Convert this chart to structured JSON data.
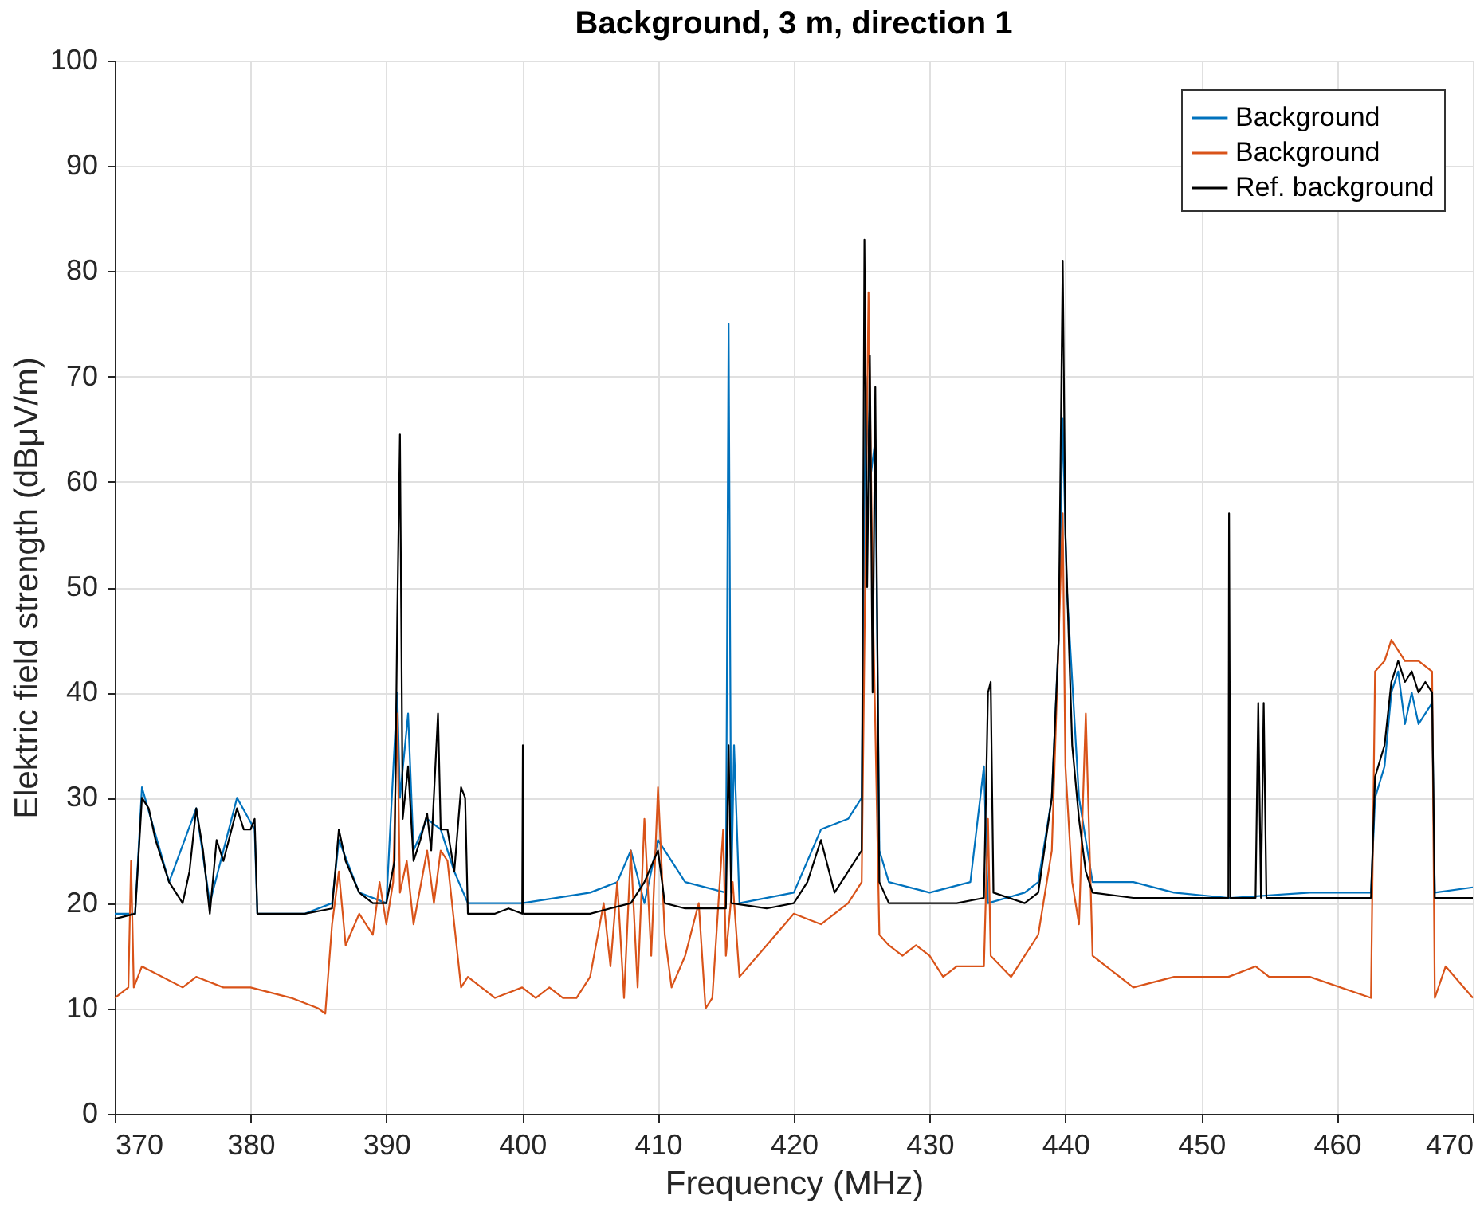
{
  "chart_data": {
    "type": "line",
    "title": "Background, 3 m, direction 1",
    "xlabel": "Frequency (MHz)",
    "ylabel": "Elektric field strength (dBμV/m)",
    "xlim": [
      370,
      470
    ],
    "xticks": [
      370,
      380,
      390,
      400,
      410,
      420,
      430,
      440,
      450,
      460,
      470
    ],
    "ylim": [
      0,
      100
    ],
    "yticks": [
      0,
      10,
      20,
      30,
      40,
      50,
      60,
      70,
      80,
      90,
      100
    ],
    "grid": true,
    "legend": "top right",
    "line_style": "solid",
    "marker": "none",
    "series": [
      {
        "name": "Background",
        "color": "#0072bd",
        "x": [
          370,
          371.5,
          372,
          374,
          376,
          377,
          379,
          380.3,
          380.5,
          384,
          386,
          386.5,
          388,
          390,
          390.8,
          391,
          391.6,
          392,
          393,
          394,
          395,
          396,
          400,
          405,
          407,
          408,
          409,
          410,
          412,
          415,
          415.2,
          415.4,
          415.6,
          416,
          420,
          422,
          424,
          425,
          425.3,
          425.6,
          426,
          426.3,
          427,
          430,
          433,
          434,
          434.3,
          437,
          438,
          439,
          439.5,
          439.8,
          440.1,
          441,
          442,
          445,
          448,
          452,
          452.15,
          458,
          462.5,
          462.8,
          463.5,
          464,
          464.5,
          465,
          465.5,
          466,
          467,
          467.2,
          470
        ],
        "values": [
          19,
          19,
          31,
          22,
          29,
          20,
          30,
          27,
          19,
          19,
          20,
          26,
          21,
          20,
          40,
          30,
          38,
          25,
          28,
          27,
          23,
          20,
          20,
          21,
          22,
          25,
          20,
          26,
          22,
          21,
          75,
          21,
          35,
          20,
          21,
          27,
          28,
          30,
          70,
          60,
          64,
          25,
          22,
          21,
          22,
          33,
          20,
          21,
          22,
          30,
          45,
          66,
          50,
          30,
          22,
          22,
          21,
          20.5,
          20.5,
          21,
          21,
          30,
          33,
          40,
          42,
          37,
          40,
          37,
          39,
          21,
          21.5
        ]
      },
      {
        "name": "Background",
        "color": "#d95319",
        "x": [
          370,
          371,
          371.2,
          371.4,
          372,
          375,
          376,
          378,
          380,
          383,
          385,
          385.5,
          386,
          386.5,
          387,
          388,
          389,
          389.5,
          390,
          390.5,
          390.8,
          391,
          391.5,
          392,
          393,
          393.5,
          394,
          394.5,
          395,
          395.5,
          396,
          398,
          399,
          400,
          401,
          402,
          403,
          404,
          405,
          406,
          406.5,
          407,
          407.5,
          408,
          408.5,
          409,
          409.5,
          410,
          410.5,
          411,
          412,
          413,
          413.5,
          414,
          414.8,
          415,
          415.5,
          416,
          418,
          420,
          422,
          424,
          425,
          425.5,
          425.8,
          426.3,
          427,
          428,
          429,
          430,
          431,
          432,
          433,
          434,
          434.3,
          434.5,
          436,
          437,
          438,
          439,
          439.8,
          440,
          440.5,
          441,
          441.5,
          442,
          445,
          448,
          452,
          454,
          455,
          458,
          462.5,
          462.8,
          463.5,
          464,
          465,
          466,
          467,
          467.2,
          468,
          470
        ],
        "values": [
          11,
          12,
          24,
          12,
          14,
          12,
          13,
          12,
          12,
          11,
          10,
          9.5,
          18,
          23,
          16,
          19,
          17,
          22,
          18,
          22,
          38,
          21,
          24,
          18,
          25,
          20,
          25,
          24,
          18,
          12,
          13,
          11,
          11.5,
          12,
          11,
          12,
          11,
          11,
          13,
          20,
          14,
          22,
          11,
          25,
          12,
          28,
          15,
          31,
          17,
          12,
          15,
          20,
          10,
          11,
          27,
          15,
          22,
          13,
          16,
          19,
          18,
          20,
          22,
          78,
          50,
          17,
          16,
          15,
          16,
          15,
          13,
          14,
          14,
          14,
          28,
          15,
          13,
          15,
          17,
          25,
          57,
          33,
          22,
          18,
          38,
          15,
          12,
          13,
          13,
          14,
          13,
          13,
          11,
          42,
          43,
          45,
          43,
          43,
          42,
          11,
          14,
          11
        ]
      },
      {
        "name": "Ref. background",
        "color": "#000000",
        "x": [
          370,
          371.5,
          372,
          372.5,
          373,
          374,
          375,
          375.5,
          376,
          376.5,
          377,
          377.5,
          378,
          379,
          379.5,
          380,
          380.3,
          380.5,
          382,
          384,
          386,
          386.5,
          387,
          388,
          389,
          390,
          390.6,
          390.8,
          391,
          391.2,
          391.6,
          392,
          392.5,
          393,
          393.3,
          393.8,
          394,
          394.5,
          395,
          395.5,
          395.8,
          396,
          398,
          399,
          400,
          400.05,
          400.1,
          405,
          408,
          409,
          410,
          410.5,
          412,
          415,
          415.2,
          415.4,
          418,
          420,
          421,
          422,
          423,
          424,
          425,
          425.2,
          425.4,
          425.6,
          425.8,
          426,
          426.3,
          427,
          430,
          432,
          434,
          434.3,
          434.5,
          434.7,
          437,
          438,
          439,
          439.5,
          439.8,
          440,
          440.5,
          441,
          441.5,
          442,
          445,
          448,
          452,
          452.05,
          452.15,
          454,
          454.2,
          454.4,
          454.6,
          454.8,
          458,
          462.5,
          462.8,
          463.5,
          464,
          464.5,
          465,
          465.5,
          466,
          466.5,
          467,
          467.2,
          470
        ],
        "values": [
          18.5,
          19,
          30,
          29,
          26,
          22,
          20,
          23,
          29,
          25,
          19,
          26,
          24,
          29,
          27,
          27,
          28,
          19,
          19,
          19,
          19.5,
          27,
          24,
          21,
          20,
          20,
          24,
          47,
          64.5,
          28,
          33,
          24,
          26,
          28.5,
          25,
          38,
          27,
          27,
          23,
          31,
          30,
          19,
          19,
          19.5,
          19,
          35,
          19,
          19,
          20,
          22,
          25,
          20,
          19.5,
          19.5,
          35,
          20,
          19.5,
          20,
          22,
          26,
          21,
          23,
          25,
          83,
          50,
          72,
          40,
          69,
          22,
          20,
          20,
          20,
          20.5,
          40,
          41,
          21,
          20,
          21,
          30,
          45,
          81,
          55,
          35,
          28,
          23,
          21,
          20.5,
          20.5,
          20.5,
          57,
          20.5,
          20.5,
          39,
          20.5,
          39,
          20.5,
          20.5,
          20.5,
          32,
          35,
          41,
          43,
          41,
          42,
          40,
          41,
          40,
          20.5,
          20.5
        ]
      }
    ]
  }
}
